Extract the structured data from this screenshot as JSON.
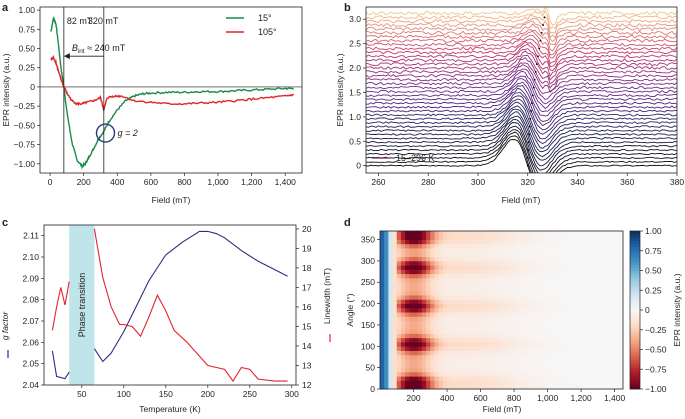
{
  "chart_data": [
    {
      "panel": "a",
      "type": "line",
      "title": "",
      "xlabel": "Field (mT)",
      "ylabel": "EPR intensity (a.u.)",
      "xlim": [
        -60,
        1500
      ],
      "ylim": [
        -1.12,
        1.04
      ],
      "xticks": [
        0,
        200,
        400,
        600,
        800,
        1000,
        1200,
        1400
      ],
      "xtick_labels": [
        "0",
        "200",
        "400",
        "600",
        "800",
        "1,000",
        "1,200",
        "1,400"
      ],
      "yticks": [
        1.0,
        0.75,
        0.5,
        0.25,
        0,
        -0.25,
        -0.5,
        -0.75,
        -1.0
      ],
      "ytick_labels": [
        "1.00",
        "0.75",
        "0.50",
        "0.25",
        "0",
        "−0.25",
        "−0.50",
        "−0.75",
        "−1.00"
      ],
      "legend": "top-right",
      "colors": {
        "s15": "#1a8a4a",
        "s105": "#e0262a",
        "circle": "#2b3a78"
      },
      "series": [
        {
          "name": "15°",
          "color": "#1a8a4a",
          "x": [
            5,
            20,
            35,
            50,
            65,
            82,
            100,
            130,
            160,
            190,
            210,
            230,
            260,
            290,
            320,
            350,
            400,
            450,
            500,
            550,
            600,
            700,
            800,
            900,
            1000,
            1100,
            1200,
            1300,
            1400,
            1450
          ],
          "y": [
            0.72,
            0.9,
            0.82,
            0.55,
            0.25,
            0.0,
            -0.32,
            -0.72,
            -0.95,
            -1.03,
            -1.0,
            -0.92,
            -0.8,
            -0.67,
            -0.58,
            -0.45,
            -0.3,
            -0.18,
            -0.12,
            -0.09,
            -0.08,
            -0.07,
            -0.07,
            -0.06,
            -0.06,
            -0.05,
            -0.04,
            -0.03,
            -0.02,
            -0.02
          ]
        },
        {
          "name": "105°",
          "color": "#e0262a",
          "x": [
            5,
            20,
            35,
            50,
            65,
            82,
            100,
            130,
            160,
            190,
            220,
            260,
            300,
            320,
            340,
            380,
            430,
            500,
            600,
            700,
            800,
            900,
            1000,
            1100,
            1200,
            1300,
            1400,
            1450
          ],
          "y": [
            0.35,
            0.38,
            0.32,
            0.2,
            0.1,
            0.0,
            -0.08,
            -0.18,
            -0.22,
            -0.22,
            -0.2,
            -0.18,
            -0.14,
            -0.3,
            -0.14,
            -0.12,
            -0.12,
            -0.18,
            -0.2,
            -0.22,
            -0.22,
            -0.21,
            -0.2,
            -0.18,
            -0.16,
            -0.14,
            -0.12,
            -0.1
          ]
        }
      ],
      "annotations": {
        "v1": "82 mT",
        "v1_x": 82,
        "v2": "320 mT",
        "v2_x": 320,
        "bint_prefix": "B",
        "bint_sub": "int",
        "bint_suffix": " ≈ 240 mT",
        "g_label": "g = 2",
        "circle_center": [
          330,
          -0.6
        ]
      }
    },
    {
      "panel": "b",
      "type": "line",
      "xlabel": "Field (mT)",
      "ylabel": "EPR intensity (a.u.)",
      "xlim": [
        255,
        380
      ],
      "ylim": [
        -0.15,
        3.25
      ],
      "xticks": [
        260,
        280,
        300,
        320,
        340,
        360,
        380
      ],
      "xtick_labels": [
        "260",
        "280",
        "300",
        "320",
        "340",
        "360",
        "380"
      ],
      "yticks": [
        0,
        0.5,
        1.0,
        1.5,
        2.0,
        2.5,
        3.0
      ],
      "ytick_labels": [
        "0",
        "0.5",
        "1.0",
        "1.5",
        "2.0",
        "2.5",
        "3.0"
      ],
      "legend": "bottom-left",
      "legend_label": "15–296 K",
      "trace_count": 40,
      "trace_spacing": 0.08,
      "color_start": "#0a0a0a",
      "color_mid": [
        "#20205a",
        "#6a2a8a",
        "#c23a6a"
      ],
      "color_end": "#f4c48a",
      "resonance_start": 320,
      "resonance_end": 327
    },
    {
      "panel": "c",
      "type": "line",
      "xlabel": "Temperature (K)",
      "ylabel_left": "g factor",
      "ylabel_right": "Linewidth (mT)",
      "xlim": [
        5,
        305
      ],
      "ylim_left": [
        2.04,
        2.115
      ],
      "ylim_right": [
        12,
        20.2
      ],
      "xticks": [
        50,
        100,
        150,
        200,
        250,
        300
      ],
      "xtick_labels": [
        "50",
        "100",
        "150",
        "200",
        "250",
        "300"
      ],
      "yticks_left": [
        2.04,
        2.05,
        2.06,
        2.07,
        2.08,
        2.09,
        2.1,
        2.11
      ],
      "ytick_left_labels": [
        "2.04",
        "2.05",
        "2.06",
        "2.07",
        "2.08",
        "2.09",
        "2.10",
        "2.11"
      ],
      "yticks_right": [
        12,
        13,
        14,
        15,
        16,
        17,
        18,
        19,
        20
      ],
      "ytick_right_labels": [
        "12",
        "13",
        "14",
        "15",
        "16",
        "17",
        "18",
        "19",
        "20"
      ],
      "band": [
        35,
        65
      ],
      "band_label": "Phase transition",
      "band_color": "#bfe4ea",
      "series": [
        {
          "name": "g factor",
          "axis": "left",
          "color": "#2b2f7a",
          "segments": [
            {
              "x": [
                15,
                20,
                30,
                35
              ],
              "y": [
                2.056,
                2.044,
                2.043,
                2.046
              ]
            },
            {
              "x": [
                65,
                75,
                85,
                100,
                115,
                130,
                150,
                170,
                190,
                200,
                210,
                220,
                240,
                260,
                280,
                295
              ],
              "y": [
                2.057,
                2.051,
                2.055,
                2.065,
                2.077,
                2.089,
                2.101,
                2.107,
                2.112,
                2.112,
                2.111,
                2.109,
                2.103,
                2.098,
                2.094,
                2.091
              ]
            }
          ]
        },
        {
          "name": "Linewidth",
          "axis": "right",
          "color": "#e0262a",
          "segments": [
            {
              "x": [
                15,
                20,
                25,
                30,
                35
              ],
              "y": [
                14.8,
                16.0,
                17.0,
                16.1,
                17.3
              ]
            },
            {
              "x": [
                65,
                75,
                85,
                95,
                100,
                110,
                120,
                130,
                140,
                150,
                160,
                175,
                200,
                220,
                230,
                240,
                250,
                260,
                280,
                295
              ],
              "y": [
                20.0,
                17.5,
                16.0,
                15.1,
                15.1,
                15.0,
                14.5,
                15.5,
                16.6,
                15.8,
                14.8,
                14.2,
                13.0,
                12.8,
                12.2,
                12.9,
                12.8,
                12.3,
                12.2,
                12.2
              ]
            }
          ]
        }
      ]
    },
    {
      "panel": "d",
      "type": "heatmap",
      "xlabel": "Field (mT)",
      "ylabel": "Angle (°)",
      "colorbar_label": "EPR intensity (a.u.)",
      "xlim": [
        0,
        1450
      ],
      "ylim": [
        0,
        370
      ],
      "xticks": [
        200,
        400,
        600,
        800,
        1000,
        1200,
        1400
      ],
      "xtick_labels": [
        "200",
        "400",
        "600",
        "800",
        "1,000",
        "1,200",
        "1,400"
      ],
      "yticks": [
        0,
        50,
        100,
        150,
        200,
        250,
        300,
        350
      ],
      "ytick_labels": [
        "0",
        "50",
        "100",
        "150",
        "200",
        "250",
        "300",
        "350"
      ],
      "cbar_ticks": [
        1.0,
        0.75,
        0.5,
        0.25,
        0,
        -0.25,
        -0.5,
        -0.75,
        -1.0
      ],
      "cbar_labels": [
        "1.00",
        "0.75",
        "0.50",
        "0.25",
        "0",
        "−0.25",
        "−0.50",
        "−0.75",
        "−1.00"
      ],
      "hot_angles": [
        15,
        105,
        195,
        285,
        355
      ],
      "cmap": [
        "#67001f",
        "#b2182b",
        "#d6604d",
        "#f4a582",
        "#fddbc7",
        "#f7f7f7",
        "#d1e5f0",
        "#92c5de",
        "#4393c3",
        "#2166ac",
        "#053061"
      ]
    }
  ],
  "labels": {
    "a": "a",
    "b": "b",
    "c": "c",
    "d": "d"
  }
}
